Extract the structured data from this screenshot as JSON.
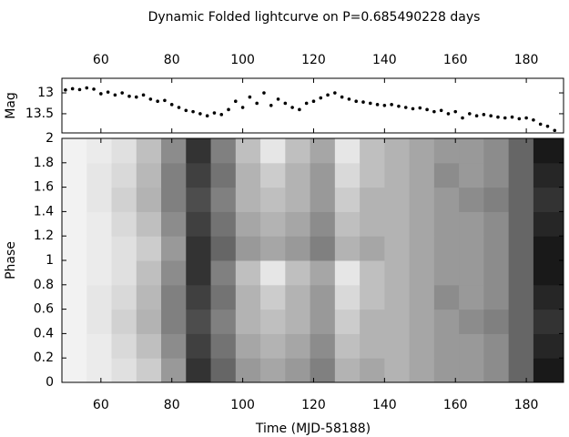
{
  "chart_data": [
    {
      "type": "scatter",
      "title": "Dynamic Folded lightcurve on P=0.685490228 days",
      "y_label": "Mag",
      "color": "#000000",
      "x": [
        50,
        52,
        54,
        56,
        58,
        60,
        62,
        64,
        66,
        68,
        70,
        72,
        74,
        76,
        78,
        80,
        82,
        84,
        86,
        88,
        90,
        92,
        94,
        96,
        98,
        100,
        102,
        104,
        106,
        108,
        110,
        112,
        114,
        116,
        118,
        120,
        122,
        124,
        126,
        128,
        130,
        132,
        134,
        136,
        138,
        140,
        142,
        144,
        146,
        148,
        150,
        152,
        154,
        156,
        158,
        160,
        162,
        164,
        166,
        168,
        170,
        172,
        174,
        176,
        178,
        180,
        182,
        184,
        186,
        188
      ],
      "values": [
        12.93,
        12.9,
        12.92,
        12.88,
        12.91,
        13.02,
        12.98,
        13.05,
        13.0,
        13.08,
        13.1,
        13.05,
        13.15,
        13.2,
        13.18,
        13.28,
        13.35,
        13.42,
        13.45,
        13.5,
        13.55,
        13.48,
        13.52,
        13.4,
        13.2,
        13.35,
        13.1,
        13.25,
        13.0,
        13.3,
        13.15,
        13.25,
        13.35,
        13.4,
        13.25,
        13.2,
        13.12,
        13.05,
        13.0,
        13.1,
        13.15,
        13.2,
        13.22,
        13.25,
        13.28,
        13.3,
        13.28,
        13.32,
        13.35,
        13.38,
        13.36,
        13.4,
        13.45,
        13.42,
        13.5,
        13.45,
        13.6,
        13.5,
        13.55,
        13.52,
        13.55,
        13.58,
        13.6,
        13.58,
        13.62,
        13.6,
        13.65,
        13.75,
        13.8,
        13.9
      ],
      "xlim": [
        49,
        190.5
      ],
      "xticks": [
        60,
        80,
        100,
        120,
        140,
        160,
        180
      ],
      "ylim": [
        13.96,
        12.65
      ],
      "yticks": [
        13,
        13.5
      ]
    },
    {
      "type": "heatmap",
      "x_label": "Time (MJD-58188)",
      "y_label": "Phase",
      "x_edges": [
        49,
        56,
        63,
        70,
        77,
        84,
        91,
        98,
        105,
        112,
        119,
        126,
        133,
        140,
        147,
        154,
        161,
        168,
        175,
        182,
        190.5
      ],
      "y_edges": [
        0,
        0.2,
        0.4,
        0.6,
        0.8,
        1,
        1.2,
        1.4,
        1.6,
        1.8,
        2
      ],
      "z": [
        [
          0.05,
          0.08,
          0.12,
          0.2,
          0.4,
          0.8,
          0.6,
          0.4,
          0.35,
          0.4,
          0.5,
          0.3,
          0.35,
          0.3,
          0.35,
          0.4,
          0.4,
          0.45,
          0.6,
          0.9
        ],
        [
          0.05,
          0.08,
          0.15,
          0.25,
          0.45,
          0.75,
          0.55,
          0.35,
          0.3,
          0.35,
          0.45,
          0.25,
          0.3,
          0.3,
          0.35,
          0.4,
          0.4,
          0.45,
          0.6,
          0.85
        ],
        [
          0.05,
          0.1,
          0.18,
          0.3,
          0.5,
          0.7,
          0.5,
          0.3,
          0.25,
          0.3,
          0.4,
          0.2,
          0.3,
          0.3,
          0.35,
          0.4,
          0.45,
          0.5,
          0.6,
          0.8
        ],
        [
          0.05,
          0.1,
          0.15,
          0.28,
          0.5,
          0.75,
          0.55,
          0.3,
          0.2,
          0.3,
          0.4,
          0.15,
          0.25,
          0.3,
          0.35,
          0.45,
          0.4,
          0.45,
          0.6,
          0.85
        ],
        [
          0.05,
          0.08,
          0.12,
          0.25,
          0.45,
          0.8,
          0.5,
          0.25,
          0.1,
          0.25,
          0.35,
          0.1,
          0.25,
          0.3,
          0.35,
          0.4,
          0.4,
          0.45,
          0.6,
          0.9
        ],
        [
          0.05,
          0.08,
          0.12,
          0.2,
          0.4,
          0.8,
          0.6,
          0.4,
          0.35,
          0.4,
          0.5,
          0.3,
          0.35,
          0.3,
          0.35,
          0.4,
          0.4,
          0.45,
          0.6,
          0.9
        ],
        [
          0.05,
          0.08,
          0.15,
          0.25,
          0.45,
          0.75,
          0.55,
          0.35,
          0.3,
          0.35,
          0.45,
          0.25,
          0.3,
          0.3,
          0.35,
          0.4,
          0.4,
          0.45,
          0.6,
          0.85
        ],
        [
          0.05,
          0.1,
          0.18,
          0.3,
          0.5,
          0.7,
          0.5,
          0.3,
          0.25,
          0.3,
          0.4,
          0.2,
          0.3,
          0.3,
          0.35,
          0.4,
          0.45,
          0.5,
          0.6,
          0.8
        ],
        [
          0.05,
          0.1,
          0.15,
          0.28,
          0.5,
          0.75,
          0.55,
          0.3,
          0.2,
          0.3,
          0.4,
          0.15,
          0.25,
          0.3,
          0.35,
          0.45,
          0.4,
          0.45,
          0.6,
          0.85
        ],
        [
          0.05,
          0.08,
          0.12,
          0.25,
          0.45,
          0.8,
          0.5,
          0.25,
          0.1,
          0.25,
          0.35,
          0.1,
          0.25,
          0.3,
          0.35,
          0.4,
          0.4,
          0.45,
          0.6,
          0.9
        ]
      ],
      "xlim": [
        49,
        190.5
      ],
      "xticks": [
        60,
        80,
        100,
        120,
        140,
        160,
        180
      ],
      "ylim": [
        0,
        2
      ],
      "yticks": [
        0,
        0.2,
        0.4,
        0.6,
        0.8,
        1,
        1.2,
        1.4,
        1.6,
        1.8,
        2
      ]
    }
  ]
}
